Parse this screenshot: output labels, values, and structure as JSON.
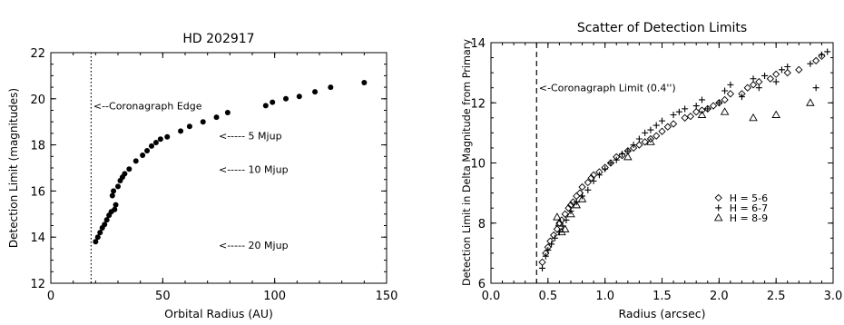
{
  "chart_data": [
    {
      "type": "scatter",
      "title": "HD 202917",
      "xlabel": "Orbital Radius (AU)",
      "ylabel": "Detection Limit (magnitudes)",
      "xlim": [
        0,
        150
      ],
      "ylim": [
        12,
        22
      ],
      "xticks": [
        0,
        50,
        100,
        150
      ],
      "yticks": [
        12,
        14,
        16,
        18,
        20,
        22
      ],
      "xtick_labels": [
        "0",
        "50",
        "100",
        "150"
      ],
      "ytick_labels": [
        "12",
        "14",
        "16",
        "18",
        "20",
        "22"
      ],
      "grid": false,
      "series": [
        {
          "marker": "filled-circle",
          "x": [
            20,
            21,
            22,
            23,
            24,
            25,
            26,
            27,
            27.5,
            28,
            28.5,
            29,
            30,
            31,
            32,
            33,
            35,
            38,
            41,
            43,
            45,
            47,
            49,
            52,
            58,
            62,
            68,
            74,
            79,
            96,
            99,
            105,
            111,
            118,
            125,
            140
          ],
          "y": [
            13.8,
            14.0,
            14.2,
            14.4,
            14.55,
            14.75,
            14.95,
            15.1,
            15.8,
            16.0,
            15.2,
            15.4,
            16.2,
            16.45,
            16.6,
            16.75,
            16.95,
            17.3,
            17.55,
            17.75,
            17.95,
            18.1,
            18.25,
            18.35,
            18.6,
            18.8,
            19.0,
            19.2,
            19.4,
            19.7,
            19.85,
            20.0,
            20.1,
            20.3,
            20.5,
            20.7
          ]
        }
      ],
      "reference_line": {
        "x": 18,
        "style": "dotted"
      },
      "annotations": [
        {
          "text": "<--Coronagraph Edge",
          "x": 19,
          "y": 19.7
        },
        {
          "text": "<----- 5 Mjup",
          "x": 75,
          "y": 18.4
        },
        {
          "text": "<----- 10 Mjup",
          "x": 75,
          "y": 16.95
        },
        {
          "text": "<----- 20 Mjup",
          "x": 75,
          "y": 13.65
        }
      ]
    },
    {
      "type": "scatter",
      "title": "Scatter of Detection Limits",
      "xlabel": "Radius (arcsec)",
      "ylabel": "Detection Limit in Delta Magnitude from Primary",
      "xlim": [
        0.0,
        3.0
      ],
      "ylim": [
        6,
        14
      ],
      "xticks": [
        0.0,
        0.5,
        1.0,
        1.5,
        2.0,
        2.5,
        3.0
      ],
      "yticks": [
        6,
        8,
        10,
        12,
        14
      ],
      "xtick_labels": [
        "0.0",
        "0.5",
        "1.0",
        "1.5",
        "2.0",
        "2.5",
        "3.0"
      ],
      "ytick_labels": [
        "6",
        "8",
        "10",
        "12",
        "14"
      ],
      "grid": false,
      "legend_position": "lower-right",
      "series": [
        {
          "name": "H = 5-6",
          "marker": "diamond",
          "x": [
            0.45,
            0.48,
            0.5,
            0.52,
            0.55,
            0.58,
            0.6,
            0.62,
            0.65,
            0.68,
            0.7,
            0.72,
            0.75,
            0.78,
            0.8,
            0.85,
            0.88,
            0.9,
            0.95,
            1.0,
            1.05,
            1.1,
            1.15,
            1.2,
            1.25,
            1.3,
            1.35,
            1.4,
            1.45,
            1.5,
            1.55,
            1.6,
            1.7,
            1.75,
            1.8,
            1.85,
            1.9,
            1.95,
            2.0,
            2.05,
            2.1,
            2.2,
            2.25,
            2.3,
            2.35,
            2.45,
            2.5,
            2.6,
            2.7,
            2.85,
            2.9
          ],
          "y": [
            6.7,
            7.0,
            7.2,
            7.4,
            7.6,
            7.8,
            8.0,
            8.1,
            8.3,
            8.5,
            8.6,
            8.7,
            8.9,
            9.0,
            9.2,
            9.35,
            9.5,
            9.6,
            9.7,
            9.85,
            10.0,
            10.2,
            10.25,
            10.4,
            10.5,
            10.6,
            10.7,
            10.8,
            10.9,
            11.05,
            11.2,
            11.3,
            11.5,
            11.55,
            11.7,
            11.75,
            11.8,
            11.9,
            12.0,
            12.1,
            12.3,
            12.3,
            12.5,
            12.6,
            12.7,
            12.8,
            12.95,
            13.0,
            13.1,
            13.4,
            13.55
          ]
        },
        {
          "name": "H = 6-7",
          "marker": "plus",
          "x": [
            0.45,
            0.48,
            0.5,
            0.53,
            0.56,
            0.6,
            0.63,
            0.66,
            0.7,
            0.75,
            0.8,
            0.85,
            0.9,
            0.95,
            1.0,
            1.05,
            1.1,
            1.15,
            1.2,
            1.25,
            1.3,
            1.35,
            1.4,
            1.45,
            1.5,
            1.6,
            1.65,
            1.7,
            1.8,
            1.85,
            1.9,
            2.0,
            2.05,
            2.1,
            2.2,
            2.3,
            2.35,
            2.4,
            2.5,
            2.55,
            2.6,
            2.8,
            2.85,
            2.9,
            2.95
          ],
          "y": [
            6.5,
            6.9,
            7.1,
            7.3,
            7.5,
            7.7,
            7.9,
            8.1,
            8.4,
            8.7,
            8.9,
            9.1,
            9.4,
            9.6,
            9.8,
            10.0,
            10.1,
            10.3,
            10.4,
            10.6,
            10.8,
            11.0,
            11.1,
            11.25,
            11.4,
            11.6,
            11.7,
            11.8,
            11.9,
            12.1,
            11.8,
            12.0,
            12.4,
            12.6,
            12.2,
            12.8,
            12.5,
            12.9,
            12.7,
            13.1,
            13.2,
            13.3,
            12.5,
            13.6,
            13.7
          ]
        },
        {
          "name": "H = 8-9",
          "marker": "triangle",
          "x": [
            0.58,
            0.6,
            0.62,
            0.65,
            0.7,
            0.75,
            0.8,
            1.2,
            1.4,
            1.85,
            2.05,
            2.3,
            2.5,
            2.8
          ],
          "y": [
            8.2,
            8.0,
            7.7,
            7.8,
            8.3,
            8.6,
            8.8,
            10.2,
            10.7,
            11.6,
            11.7,
            11.5,
            11.6,
            12.0
          ]
        }
      ],
      "reference_line": {
        "x": 0.4,
        "style": "dashed"
      },
      "annotations": [
        {
          "text": "<-Coronagraph Limit (0.4'')",
          "x": 0.42,
          "y": 12.5
        }
      ]
    }
  ]
}
